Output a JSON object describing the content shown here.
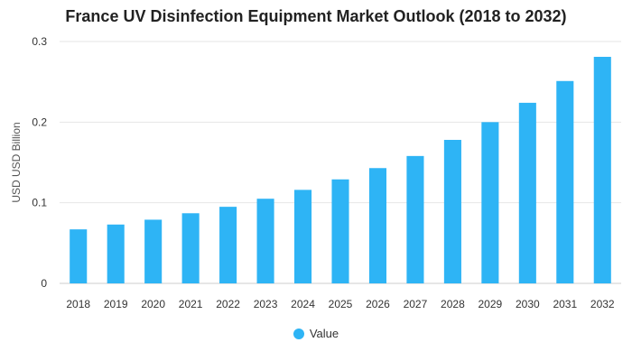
{
  "chart_data": {
    "type": "bar",
    "title": "France UV Disinfection Equipment Market Outlook (2018 to 2032)",
    "xlabel": "",
    "ylabel": "USD USD Billion",
    "categories": [
      "2018",
      "2019",
      "2020",
      "2021",
      "2022",
      "2023",
      "2024",
      "2025",
      "2026",
      "2027",
      "2028",
      "2029",
      "2030",
      "2031",
      "2032"
    ],
    "series": [
      {
        "name": "Value",
        "values": [
          0.067,
          0.073,
          0.079,
          0.087,
          0.095,
          0.105,
          0.116,
          0.129,
          0.143,
          0.158,
          0.178,
          0.2,
          0.224,
          0.251,
          0.281
        ]
      }
    ],
    "ylim": [
      0,
      0.3
    ],
    "yticks": [
      0,
      0.1,
      0.2,
      0.3
    ],
    "ytick_labels": [
      "0",
      "0.1",
      "0.2",
      "0.3"
    ],
    "grid": true,
    "legend_position": "bottom",
    "colors": {
      "bar": "#2eb4f5",
      "grid": "#e6e6e6",
      "axis": "#cccccc"
    }
  }
}
